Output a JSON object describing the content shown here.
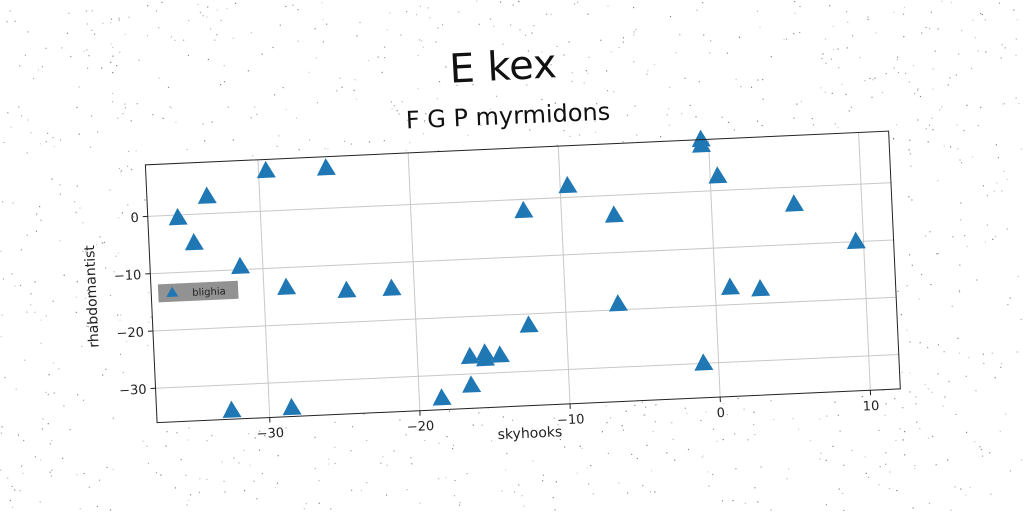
{
  "chart_data": {
    "type": "scatter",
    "suptitle": "E kex",
    "title": "F G P myrmidons",
    "xlabel": "skyhooks",
    "ylabel": "rhabdomantist",
    "xlim": [
      -37.5,
      12
    ],
    "ylim": [
      -36,
      9
    ],
    "xticks": [
      -30,
      -20,
      -10,
      0,
      10
    ],
    "xtick_labels": [
      "−30",
      "−20",
      "−10",
      "0",
      "10"
    ],
    "yticks": [
      0,
      -10,
      -20,
      -30
    ],
    "ytick_labels": [
      "0",
      "−10",
      "−20",
      "−30"
    ],
    "grid": true,
    "legend_position": "center-left",
    "marker": "triangle",
    "series": [
      {
        "name": "blighia",
        "color": "#1f77b4",
        "points": [
          {
            "x": -35.5,
            "y": -0.5
          },
          {
            "x": -33.5,
            "y": 3
          },
          {
            "x": -34.5,
            "y": -5
          },
          {
            "x": -31.5,
            "y": -9.5
          },
          {
            "x": -29.5,
            "y": 7
          },
          {
            "x": -25.5,
            "y": 7
          },
          {
            "x": -28.5,
            "y": -13.5
          },
          {
            "x": -24.5,
            "y": -14.5
          },
          {
            "x": -21.5,
            "y": -14.5
          },
          {
            "x": -32.5,
            "y": -34.5
          },
          {
            "x": -28.5,
            "y": -34.5
          },
          {
            "x": -18.5,
            "y": -34
          },
          {
            "x": -16.5,
            "y": -32
          },
          {
            "x": -16.5,
            "y": -27
          },
          {
            "x": -15.5,
            "y": -27.5
          },
          {
            "x": -15.5,
            "y": -26.5
          },
          {
            "x": -14.5,
            "y": -27
          },
          {
            "x": -12.5,
            "y": -22
          },
          {
            "x": -12.5,
            "y": -2
          },
          {
            "x": -9.5,
            "y": 2
          },
          {
            "x": -6.5,
            "y": -3.5
          },
          {
            "x": -6.5,
            "y": -19
          },
          {
            "x": -1,
            "y": -30
          },
          {
            "x": -0.5,
            "y": 8
          },
          {
            "x": -0.5,
            "y": 9
          },
          {
            "x": 0.5,
            "y": 2.5
          },
          {
            "x": 1,
            "y": -17
          },
          {
            "x": 3,
            "y": -17.5
          },
          {
            "x": 5.5,
            "y": -3
          },
          {
            "x": 9.5,
            "y": -10
          }
        ]
      }
    ]
  }
}
